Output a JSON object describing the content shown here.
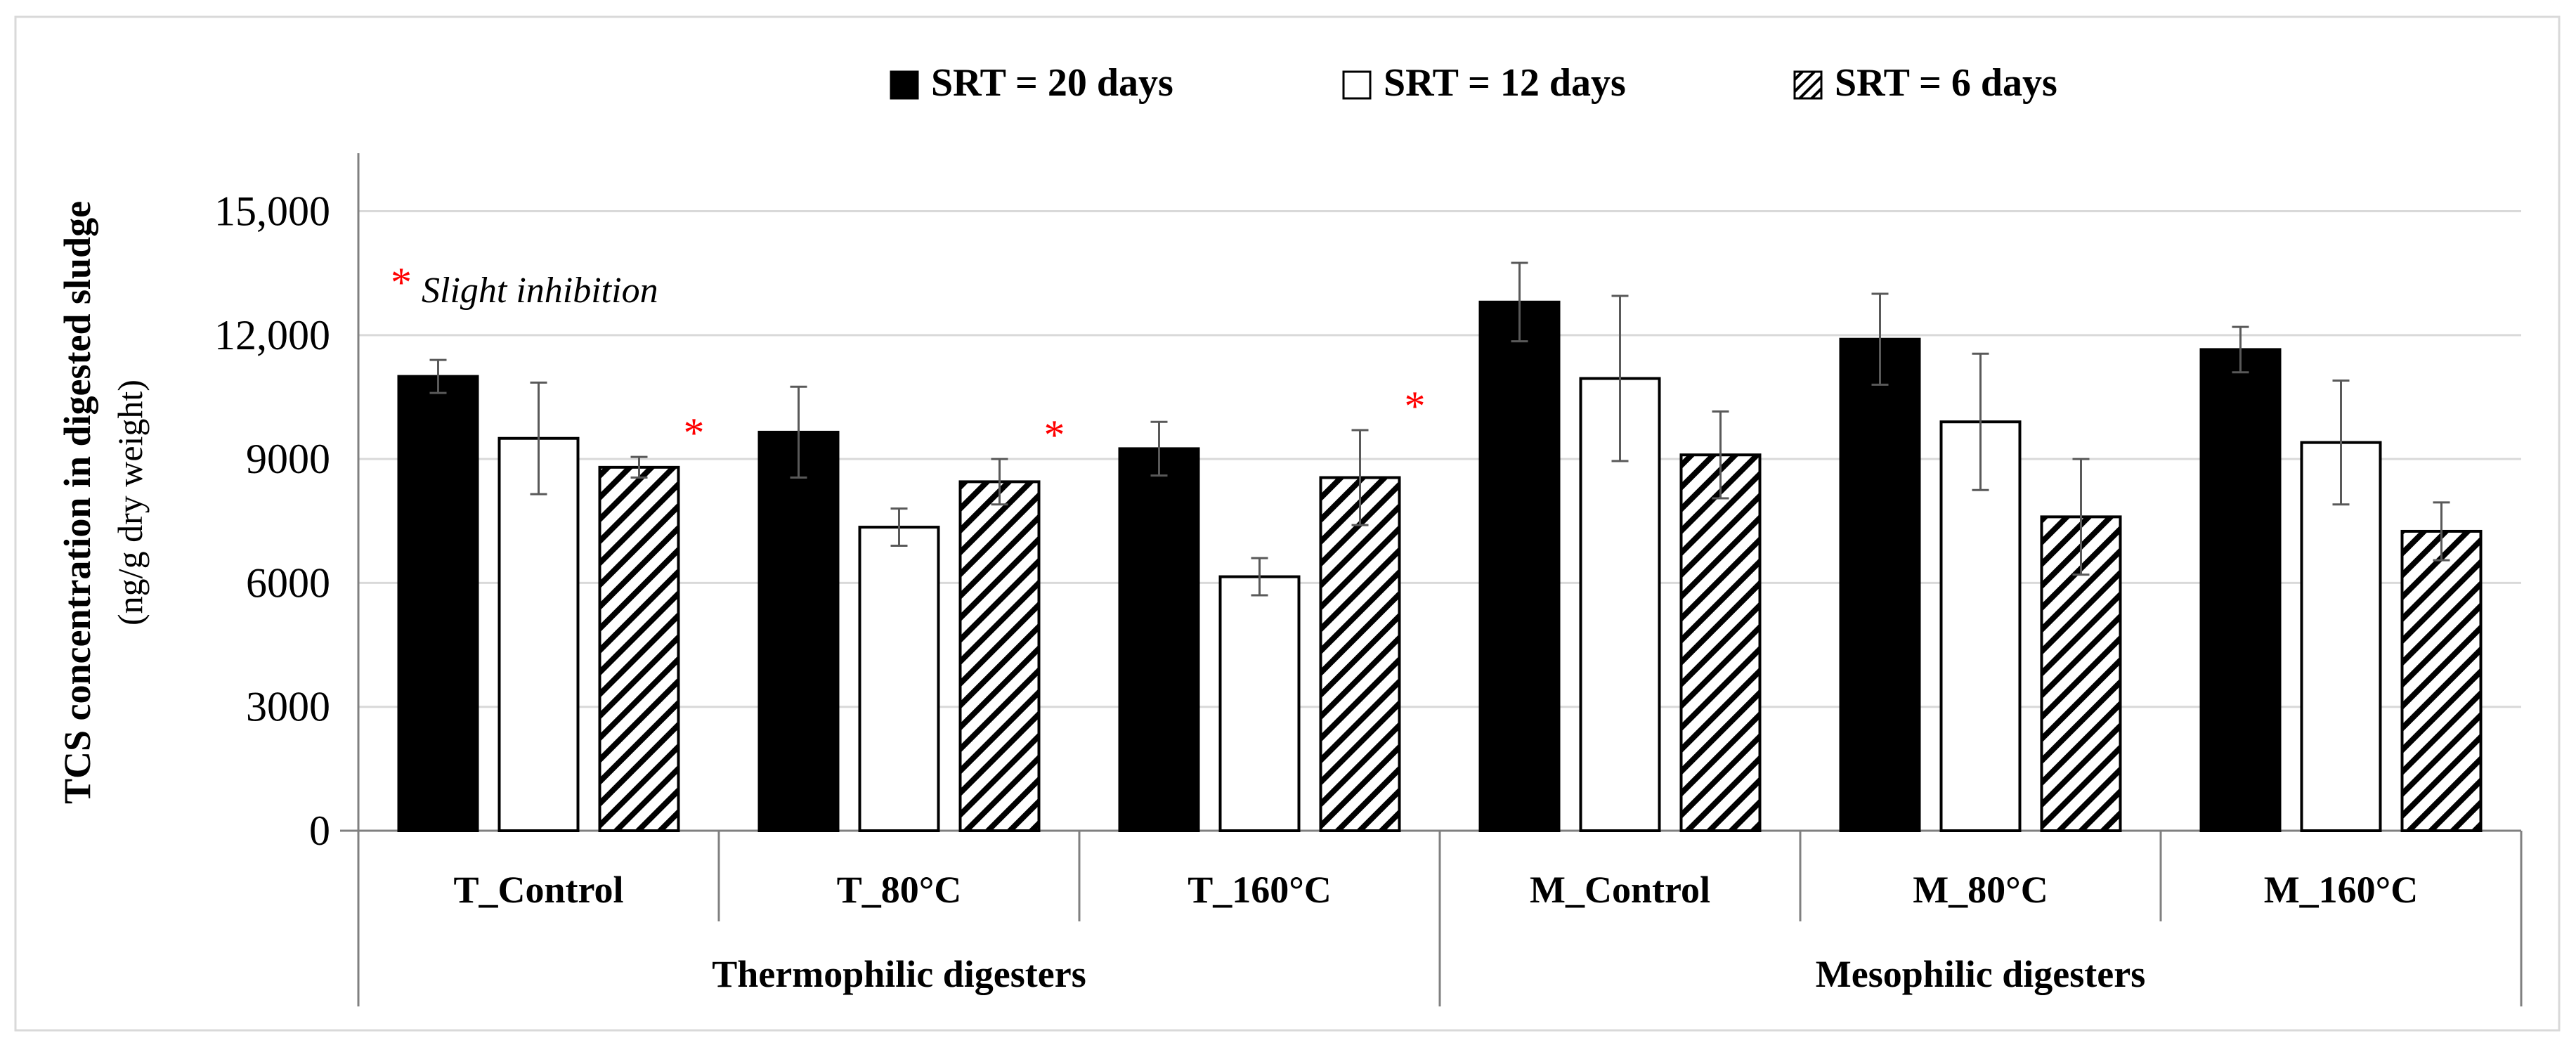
{
  "chart_data": {
    "type": "bar",
    "title": "",
    "ylabel_line1": "TCS concentration in digested sludge",
    "ylabel_line2": "(ng/g dry weight)",
    "xlabel": "",
    "ylim": [
      0,
      17000
    ],
    "yticks": [
      0,
      3000,
      6000,
      9000,
      12000,
      15000
    ],
    "ytick_labels": [
      "0",
      "3000",
      "6000",
      "9000",
      "12,000",
      "15,000"
    ],
    "grid": true,
    "legend_position": "top",
    "categories": [
      "T_Control",
      "T_80°C",
      "T_160°C",
      "M_Control",
      "M_80°C",
      "M_160°C"
    ],
    "groups": [
      {
        "label": "Thermophilic digesters",
        "categories": [
          "T_Control",
          "T_80°C",
          "T_160°C"
        ]
      },
      {
        "label": "Mesophilic digesters",
        "categories": [
          "M_Control",
          "M_80°C",
          "M_160°C"
        ]
      }
    ],
    "series": [
      {
        "name": "SRT = 20 days",
        "fill": "solid-black",
        "values": [
          11000,
          9650,
          9250,
          12800,
          11900,
          11650
        ],
        "errors": [
          400,
          1100,
          650,
          950,
          1100,
          550
        ]
      },
      {
        "name": "SRT = 12 days",
        "fill": "white",
        "values": [
          9500,
          7350,
          6150,
          10950,
          9900,
          9400
        ],
        "errors": [
          1350,
          450,
          450,
          2000,
          1650,
          1500
        ]
      },
      {
        "name": "SRT = 6 days",
        "fill": "hatched",
        "values": [
          8800,
          8450,
          8550,
          9100,
          7600,
          7250
        ],
        "errors": [
          250,
          550,
          1150,
          1050,
          1400,
          700
        ]
      }
    ],
    "inhibition_flags": [
      true,
      true,
      true,
      false,
      false,
      false
    ],
    "annotation": {
      "marker": "*",
      "text": "Slight inhibition"
    },
    "colors": {
      "marker": "#ff0000",
      "bar_black": "#000000",
      "grid": "#d9d9d9",
      "axis": "#808080"
    }
  }
}
